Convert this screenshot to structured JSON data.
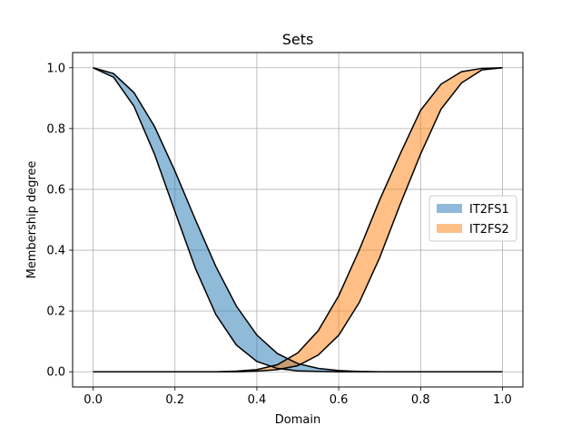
{
  "chart_data": {
    "type": "area",
    "title": "Sets",
    "xlabel": "Domain",
    "ylabel": "Membership degree",
    "xlim": [
      -0.05,
      1.05
    ],
    "ylim": [
      -0.05,
      1.05
    ],
    "xticks": [
      "0.0",
      "0.2",
      "0.4",
      "0.6",
      "0.8",
      "1.0"
    ],
    "yticks": [
      "0.0",
      "0.2",
      "0.4",
      "0.6",
      "0.8",
      "1.0"
    ],
    "grid": true,
    "legend_position": "center-right",
    "x": [
      0.0,
      0.05,
      0.1,
      0.15,
      0.2,
      0.25,
      0.3,
      0.35,
      0.4,
      0.45,
      0.5,
      0.55,
      0.6,
      0.65,
      0.7,
      0.75,
      0.8,
      0.85,
      0.9,
      0.95,
      1.0
    ],
    "series": [
      {
        "name": "IT2FS1",
        "color": "#1f77b4",
        "upper": [
          1.0,
          0.981,
          0.918,
          0.807,
          0.66,
          0.5,
          0.346,
          0.216,
          0.121,
          0.06,
          0.027,
          0.011,
          0.004,
          0.001,
          0.0,
          0.0,
          0.0,
          0.0,
          0.0,
          0.0,
          0.0
        ],
        "lower": [
          1.0,
          0.969,
          0.873,
          0.716,
          0.527,
          0.34,
          0.188,
          0.088,
          0.034,
          0.011,
          0.003,
          0.001,
          0.0,
          0.0,
          0.0,
          0.0,
          0.0,
          0.0,
          0.0,
          0.0,
          0.0
        ]
      },
      {
        "name": "IT2FS2",
        "color": "#ff7f0e",
        "upper": [
          0.0,
          0.0,
          0.0,
          0.0,
          0.0,
          0.0,
          0.0,
          0.002,
          0.007,
          0.023,
          0.062,
          0.135,
          0.25,
          0.4,
          0.565,
          0.716,
          0.86,
          0.946,
          0.987,
          0.998,
          1.0
        ],
        "lower": [
          0.0,
          0.0,
          0.0,
          0.0,
          0.0,
          0.0,
          0.0,
          0.0,
          0.002,
          0.007,
          0.02,
          0.055,
          0.12,
          0.227,
          0.375,
          0.55,
          0.716,
          0.864,
          0.95,
          0.993,
          1.0
        ]
      }
    ]
  }
}
